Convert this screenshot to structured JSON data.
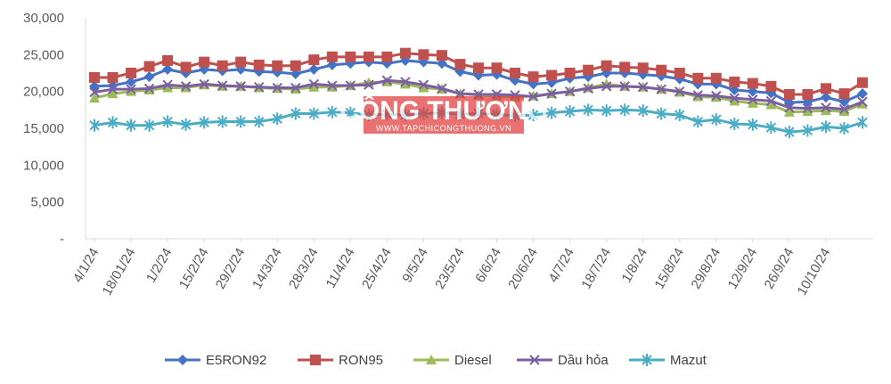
{
  "chart_data": {
    "type": "line",
    "title": "",
    "xlabel": "",
    "ylabel": "",
    "ylim": [
      0,
      30000
    ],
    "y_ticks": [
      "-",
      "5,000",
      "10,000",
      "15,000",
      "20,000",
      "25,000",
      "30,000"
    ],
    "y_tick_values": [
      0,
      5000,
      10000,
      15000,
      20000,
      25000,
      30000
    ],
    "x_tick_labels": [
      "4/1/24",
      "18/01/24",
      "1/2/24",
      "15/2/24",
      "29/2/24",
      "14/3/24",
      "28/3/24",
      "11/4/24",
      "25/4/24",
      "9/5/24",
      "23/5/24",
      "6/6/24",
      "20/6/24",
      "4/7/24",
      "18/7/24",
      "1/8/24",
      "15/8/24",
      "29/8/24",
      "12/9/24",
      "26/9/24",
      "10/10/24"
    ],
    "grid": false,
    "legend_position": "bottom",
    "series": [
      {
        "name": "E5RON92",
        "color": "#4472C4",
        "marker": "diamond",
        "values": [
          20700,
          20800,
          21300,
          22000,
          23000,
          22500,
          23000,
          22800,
          23000,
          22700,
          22600,
          22400,
          23000,
          23600,
          23800,
          24000,
          23800,
          24200,
          24000,
          23800,
          22700,
          22200,
          22300,
          21500,
          21000,
          21200,
          21800,
          22000,
          22500,
          22500,
          22300,
          22100,
          21700,
          21000,
          21000,
          20200,
          20000,
          19800,
          18500,
          18600,
          19200,
          18600,
          19700
        ]
      },
      {
        "name": "RON95",
        "color": "#C0504D",
        "marker": "square",
        "values": [
          21900,
          21900,
          22500,
          23400,
          24200,
          23300,
          24000,
          23500,
          24000,
          23600,
          23500,
          23500,
          24300,
          24700,
          24700,
          24700,
          24700,
          25200,
          25000,
          24900,
          23700,
          23200,
          23200,
          22500,
          22000,
          22200,
          22500,
          22900,
          23500,
          23300,
          23200,
          22900,
          22500,
          21800,
          21800,
          21300,
          21100,
          20700,
          19600,
          19600,
          20400,
          19700,
          21200
        ]
      },
      {
        "name": "Diesel",
        "color": "#9BBB59",
        "marker": "triangle",
        "values": [
          19100,
          19700,
          20000,
          20200,
          20500,
          20500,
          20900,
          20700,
          20700,
          20500,
          20400,
          20300,
          20600,
          20600,
          20800,
          21200,
          21300,
          21000,
          20500,
          20300,
          19700,
          19500,
          19400,
          19200,
          19400,
          19700,
          20000,
          20500,
          21000,
          20700,
          20600,
          20300,
          19900,
          19300,
          19200,
          18700,
          18400,
          18200,
          17200,
          17300,
          17400,
          17300,
          18300
        ]
      },
      {
        "name": "Dầu hỏa",
        "color": "#7B5FA2",
        "marker": "x",
        "values": [
          19900,
          20300,
          20300,
          20400,
          20900,
          20700,
          21000,
          20800,
          20700,
          20600,
          20500,
          20500,
          21000,
          20800,
          20800,
          20900,
          21500,
          21300,
          20900,
          20400,
          19700,
          19600,
          19600,
          19500,
          19300,
          19700,
          20000,
          20400,
          20700,
          20700,
          20600,
          20300,
          20000,
          19500,
          19400,
          19100,
          18900,
          18700,
          17800,
          17700,
          17800,
          17600,
          18600
        ]
      },
      {
        "name": "Mazut",
        "color": "#4BACC6",
        "marker": "star",
        "values": [
          15400,
          15800,
          15400,
          15400,
          15900,
          15500,
          15800,
          15900,
          15900,
          15900,
          16300,
          17000,
          17000,
          17200,
          17100,
          16800,
          16900,
          16800,
          17000,
          17100,
          16900,
          17000,
          16900,
          16700,
          16800,
          17100,
          17300,
          17500,
          17400,
          17500,
          17400,
          17000,
          16800,
          15900,
          16200,
          15600,
          15500,
          15100,
          14500,
          14700,
          15200,
          15000,
          15800
        ]
      }
    ]
  },
  "watermark": {
    "brand": "CÔNG THƯƠNG",
    "url": "WWW.TAPCHICONGTHUONG.VN"
  }
}
